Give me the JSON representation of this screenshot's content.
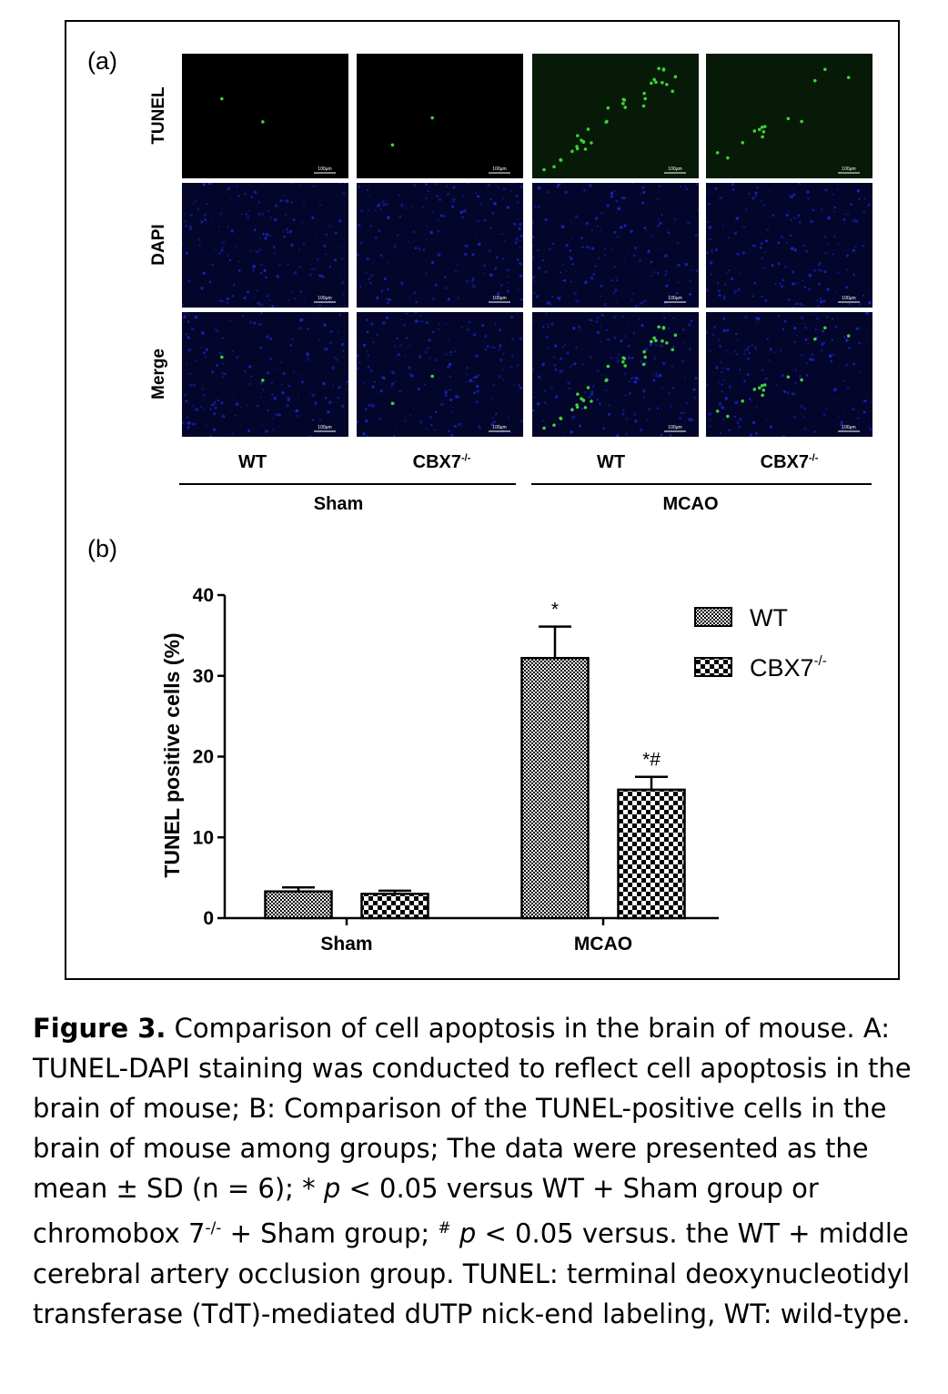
{
  "panel_a": {
    "letter": "(a)",
    "row_labels": [
      "TUNEL",
      "DAPI",
      "Merge"
    ],
    "columns": [
      {
        "label": "WT",
        "sup": ""
      },
      {
        "label": "CBX7",
        "sup": "-/-"
      },
      {
        "label": "WT",
        "sup": ""
      },
      {
        "label": "CBX7",
        "sup": "-/-"
      }
    ],
    "groups": [
      "Sham",
      "MCAO"
    ],
    "scale_bar": "100μm",
    "colors": {
      "tunel": "#3dd13a",
      "dapi": "#1a2ad8",
      "background": "#000000"
    }
  },
  "panel_b": {
    "letter": "(b)"
  },
  "chart_data": {
    "type": "bar",
    "categories": [
      "Sham",
      "MCAO"
    ],
    "ylabel": "TUNEL positive cells (%)",
    "xlabel": "",
    "ylim": [
      0,
      40
    ],
    "yticks": [
      0,
      10,
      20,
      30,
      40
    ],
    "series": [
      {
        "name": "WT",
        "sup": "",
        "values": [
          3.3,
          32.2
        ],
        "errors": [
          0.5,
          3.9
        ],
        "annotations": [
          "",
          "*"
        ],
        "pattern": "fine-checker"
      },
      {
        "name": "CBX7",
        "sup": "-/-",
        "values": [
          3.0,
          15.9
        ],
        "errors": [
          0.4,
          1.6
        ],
        "annotations": [
          "",
          "*#"
        ],
        "pattern": "coarse-checker"
      }
    ],
    "legend_position": "top-right"
  },
  "caption": {
    "label": "Figure 3.",
    "text_1": " Comparison of cell apoptosis in the brain of mouse. A: TUNEL-DAPI staining was conducted to reflect cell apoptosis in the brain of mouse; B: Comparison of the TUNEL-positive cells in the brain of mouse among groups; The data were presented as the mean ± SD (n = 6); * ",
    "p1": "p",
    "text_2": " < 0.05 versus WT + Sham group or chromobox 7",
    "sup_1": "-/-",
    "text_3": " + Sham group; ",
    "sup_2": "#",
    "p2": " p",
    "text_4": " < 0.05 versus. the WT + middle cerebral artery occlusion group. TUNEL: terminal deoxynucleotidyl transferase (TdT)-mediated dUTP nick-end labeling, WT: wild-type."
  }
}
